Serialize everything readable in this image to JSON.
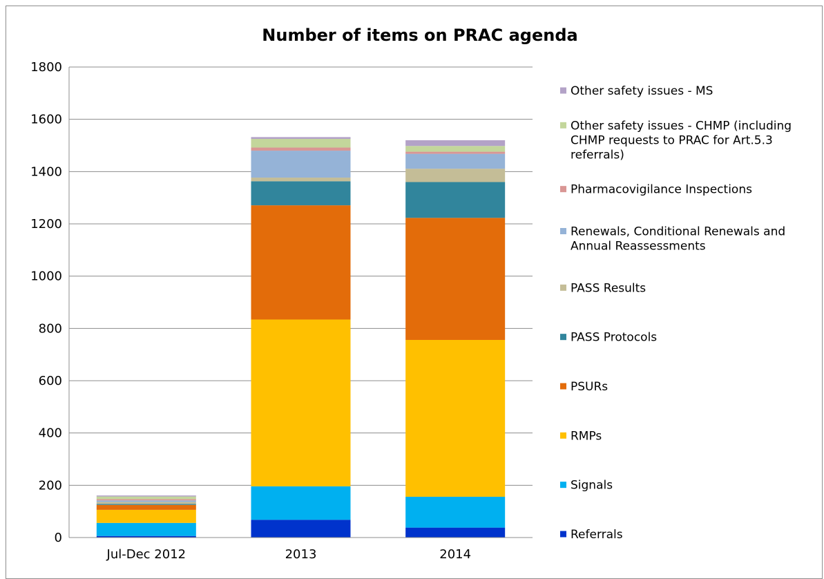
{
  "chart_data": {
    "type": "bar",
    "stacked": true,
    "title": "Number of items on PRAC agenda",
    "xlabel": "",
    "ylabel": "",
    "ylim": [
      0,
      1800
    ],
    "yticks": [
      "0",
      "200",
      "400",
      "600",
      "800",
      "1000",
      "1200",
      "1400",
      "1600",
      "1800"
    ],
    "grid": true,
    "legend_position": "right",
    "categories": [
      "Jul-Dec 2012",
      "2013",
      "2014"
    ],
    "series": [
      {
        "name": "Referrals",
        "color": "#0033cc",
        "values": [
          6,
          68,
          38
        ]
      },
      {
        "name": "Signals",
        "color": "#00b0f0",
        "values": [
          50,
          128,
          118
        ]
      },
      {
        "name": "RMPs",
        "color": "#ffc000",
        "values": [
          50,
          638,
          600
        ]
      },
      {
        "name": "PSURs",
        "color": "#e36c0a",
        "values": [
          19,
          437,
          467
        ]
      },
      {
        "name": "PASS Protocols",
        "color": "#31859c",
        "values": [
          4,
          92,
          137
        ]
      },
      {
        "name": "PASS Results",
        "color": "#c4bd97",
        "values": [
          7,
          14,
          51
        ]
      },
      {
        "name": "Renewals, Conditional Renewals and Annual Reassessments",
        "color": "#95b3d7",
        "values": [
          6,
          103,
          57
        ]
      },
      {
        "name": "Pharmacovigilance Inspections",
        "color": "#d99694",
        "values": [
          5,
          12,
          8
        ]
      },
      {
        "name": "Other safety issues - CHMP (including CHMP requests to PRAC for Art.5.3 referrals)",
        "color": "#c3d69b",
        "values": [
          10,
          33,
          22
        ]
      },
      {
        "name": "Other safety issues - MS",
        "color": "#b3a2c7",
        "values": [
          4,
          7,
          22
        ]
      }
    ]
  },
  "legend": {
    "lines": {
      "9": [
        "Other safety issues - MS"
      ],
      "8": [
        "Other safety issues - CHMP (including",
        "CHMP requests to PRAC for Art.5.3",
        "referrals)"
      ],
      "7": [
        "Pharmacovigilance Inspections"
      ],
      "6": [
        "Renewals, Conditional Renewals and",
        "Annual Reassessments"
      ],
      "5": [
        "PASS Results"
      ],
      "4": [
        "PASS Protocols"
      ],
      "3": [
        "PSURs"
      ],
      "2": [
        "RMPs"
      ],
      "1": [
        "Signals"
      ],
      "0": [
        "Referrals"
      ]
    }
  }
}
